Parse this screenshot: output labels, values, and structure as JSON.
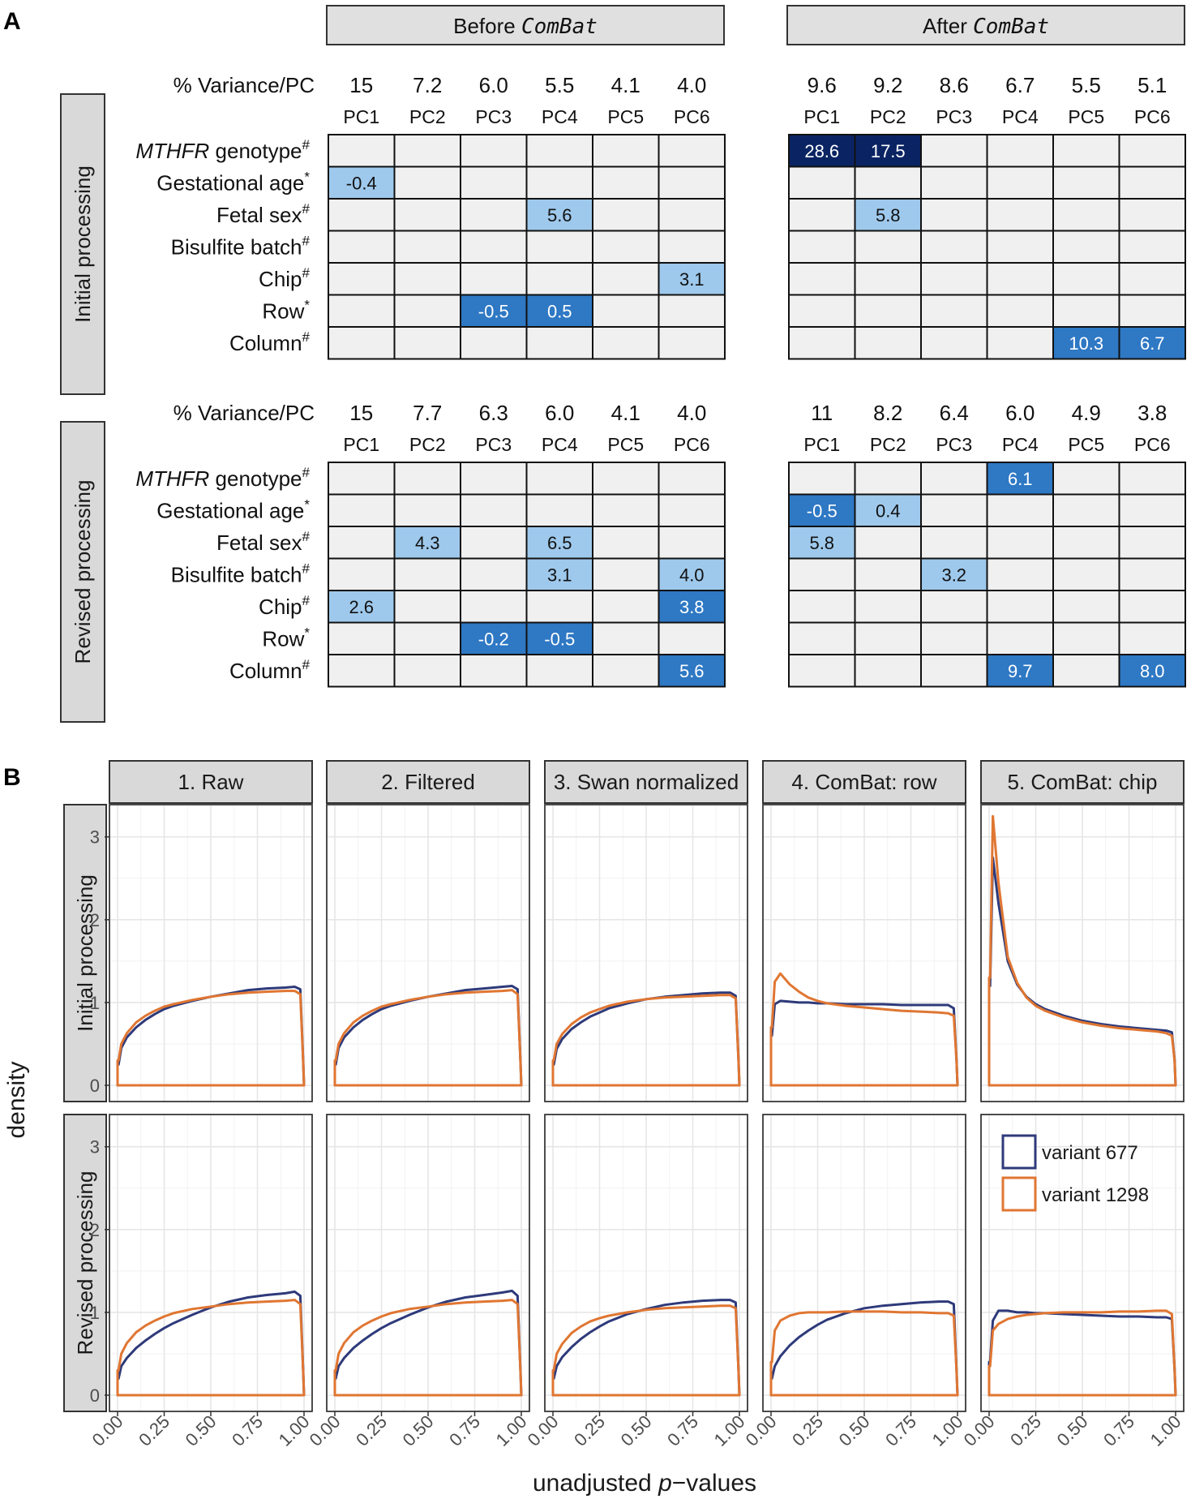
{
  "panel_a": {
    "letter": "A",
    "headers": [
      {
        "prefix": "Before ",
        "method": "ComBat"
      },
      {
        "prefix": "After ",
        "method": "ComBat"
      }
    ],
    "variance_label": "% Variance/PC",
    "pc_labels": [
      "PC1",
      "PC2",
      "PC3",
      "PC4",
      "PC5",
      "PC6"
    ],
    "row_labels": [
      {
        "name": "MTHFR",
        "rest": " genotype",
        "mark": "#",
        "italic": true
      },
      {
        "name": "",
        "rest": "Gestational age",
        "mark": "*",
        "italic": false
      },
      {
        "name": "",
        "rest": "Fetal sex",
        "mark": "#",
        "italic": false
      },
      {
        "name": "",
        "rest": "Bisulfite batch",
        "mark": "#",
        "italic": false
      },
      {
        "name": "",
        "rest": "Chip",
        "mark": "#",
        "italic": false
      },
      {
        "name": "",
        "rest": "Row",
        "mark": "*",
        "italic": false
      },
      {
        "name": "",
        "rest": "Column",
        "mark": "#",
        "italic": false
      }
    ],
    "colors": {
      "empty": "#f0f0f0",
      "light": "#9ec9ec",
      "mid": "#2e78c4",
      "dark": "#0a2463"
    },
    "blocks": [
      {
        "strip": "Initial processing",
        "tables": [
          {
            "variance": [
              "15",
              "7.2",
              "6.0",
              "5.5",
              "4.1",
              "4.0"
            ],
            "cells": [
              [
                "",
                "",
                "",
                "",
                "",
                ""
              ],
              [
                "-0.4",
                "",
                "",
                "",
                "",
                ""
              ],
              [
                "",
                "",
                "",
                "5.6",
                "",
                ""
              ],
              [
                "",
                "",
                "",
                "",
                "",
                ""
              ],
              [
                "",
                "",
                "",
                "",
                "",
                "3.1"
              ],
              [
                "",
                "",
                "-0.5",
                "0.5",
                "",
                ""
              ],
              [
                "",
                "",
                "",
                "",
                "",
                ""
              ]
            ],
            "levels": [
              [
                0,
                0,
                0,
                0,
                0,
                0
              ],
              [
                1,
                0,
                0,
                0,
                0,
                0
              ],
              [
                0,
                0,
                0,
                1,
                0,
                0
              ],
              [
                0,
                0,
                0,
                0,
                0,
                0
              ],
              [
                0,
                0,
                0,
                0,
                0,
                1
              ],
              [
                0,
                0,
                2,
                2,
                0,
                0
              ],
              [
                0,
                0,
                0,
                0,
                0,
                0
              ]
            ]
          },
          {
            "variance": [
              "9.6",
              "9.2",
              "8.6",
              "6.7",
              "5.5",
              "5.1"
            ],
            "cells": [
              [
                "28.6",
                "17.5",
                "",
                "",
                "",
                ""
              ],
              [
                "",
                "",
                "",
                "",
                "",
                ""
              ],
              [
                "",
                "5.8",
                "",
                "",
                "",
                ""
              ],
              [
                "",
                "",
                "",
                "",
                "",
                ""
              ],
              [
                "",
                "",
                "",
                "",
                "",
                ""
              ],
              [
                "",
                "",
                "",
                "",
                "",
                ""
              ],
              [
                "",
                "",
                "",
                "",
                "10.3",
                "6.7"
              ]
            ],
            "levels": [
              [
                3,
                3,
                0,
                0,
                0,
                0
              ],
              [
                0,
                0,
                0,
                0,
                0,
                0
              ],
              [
                0,
                1,
                0,
                0,
                0,
                0
              ],
              [
                0,
                0,
                0,
                0,
                0,
                0
              ],
              [
                0,
                0,
                0,
                0,
                0,
                0
              ],
              [
                0,
                0,
                0,
                0,
                0,
                0
              ],
              [
                0,
                0,
                0,
                0,
                2,
                2
              ]
            ]
          }
        ]
      },
      {
        "strip": "Revised processing",
        "tables": [
          {
            "variance": [
              "15",
              "7.7",
              "6.3",
              "6.0",
              "4.1",
              "4.0"
            ],
            "cells": [
              [
                "",
                "",
                "",
                "",
                "",
                ""
              ],
              [
                "",
                "",
                "",
                "",
                "",
                ""
              ],
              [
                "",
                "4.3",
                "",
                "6.5",
                "",
                ""
              ],
              [
                "",
                "",
                "",
                "3.1",
                "",
                "4.0"
              ],
              [
                "2.6",
                "",
                "",
                "",
                "",
                "3.8"
              ],
              [
                "",
                "",
                "-0.2",
                "-0.5",
                "",
                ""
              ],
              [
                "",
                "",
                "",
                "",
                "",
                "5.6"
              ]
            ],
            "levels": [
              [
                0,
                0,
                0,
                0,
                0,
                0
              ],
              [
                0,
                0,
                0,
                0,
                0,
                0
              ],
              [
                0,
                1,
                0,
                1,
                0,
                0
              ],
              [
                0,
                0,
                0,
                1,
                0,
                1
              ],
              [
                1,
                0,
                0,
                0,
                0,
                2
              ],
              [
                0,
                0,
                2,
                2,
                0,
                0
              ],
              [
                0,
                0,
                0,
                0,
                0,
                2
              ]
            ]
          },
          {
            "variance": [
              "11",
              "8.2",
              "6.4",
              "6.0",
              "4.9",
              "3.8"
            ],
            "cells": [
              [
                "",
                "",
                "",
                "6.1",
                "",
                ""
              ],
              [
                "-0.5",
                "0.4",
                "",
                "",
                "",
                ""
              ],
              [
                "5.8",
                "",
                "",
                "",
                "",
                ""
              ],
              [
                "",
                "",
                "3.2",
                "",
                "",
                ""
              ],
              [
                "",
                "",
                "",
                "",
                "",
                ""
              ],
              [
                "",
                "",
                "",
                "",
                "",
                ""
              ],
              [
                "",
                "",
                "",
                "9.7",
                "",
                "8.0"
              ]
            ],
            "levels": [
              [
                0,
                0,
                0,
                2,
                0,
                0
              ],
              [
                2,
                1,
                0,
                0,
                0,
                0
              ],
              [
                1,
                0,
                0,
                0,
                0,
                0
              ],
              [
                0,
                0,
                1,
                0,
                0,
                0
              ],
              [
                0,
                0,
                0,
                0,
                0,
                0
              ],
              [
                0,
                0,
                0,
                0,
                0,
                0
              ],
              [
                0,
                0,
                0,
                2,
                0,
                2
              ]
            ]
          }
        ]
      }
    ]
  },
  "chart_data": {
    "letter": "B",
    "type": "line",
    "columns": [
      "1. Raw",
      "2. Filtered",
      "3. Swan normalized",
      "4. ComBat: row",
      "5. ComBat: chip"
    ],
    "rows": [
      "Initial processing",
      "Revised processing"
    ],
    "xlabel": "unadjusted p−values",
    "xlabel_parts": [
      "unadjusted ",
      "p",
      "−values"
    ],
    "ylabel": "density",
    "xlim": [
      0,
      1
    ],
    "ylim": [
      0,
      3.35
    ],
    "x_ticks": [
      "0.00",
      "0.25",
      "0.50",
      "0.75",
      "1.00"
    ],
    "y_ticks": [
      "0",
      "1",
      "2",
      "3"
    ],
    "grid": true,
    "legend": {
      "position": "inside bottom-right panel, top-right",
      "entries": [
        {
          "name": "variant 677",
          "color": "#2e3a7a"
        },
        {
          "name": "variant 1298",
          "color": "#e07632"
        }
      ]
    },
    "x": [
      0.005,
      0.02,
      0.05,
      0.1,
      0.15,
      0.2,
      0.25,
      0.3,
      0.4,
      0.5,
      0.6,
      0.7,
      0.8,
      0.9,
      0.95,
      0.98,
      0.995
    ],
    "panels": [
      [
        {
          "variant 677": [
            0.25,
            0.45,
            0.58,
            0.7,
            0.79,
            0.86,
            0.92,
            0.96,
            1.02,
            1.07,
            1.11,
            1.15,
            1.17,
            1.18,
            1.19,
            1.16,
            0.3
          ],
          "variant 1298": [
            0.3,
            0.5,
            0.63,
            0.76,
            0.84,
            0.9,
            0.95,
            0.98,
            1.03,
            1.07,
            1.1,
            1.12,
            1.13,
            1.14,
            1.14,
            1.1,
            0.3
          ]
        },
        {
          "variant 677": [
            0.25,
            0.45,
            0.58,
            0.7,
            0.79,
            0.86,
            0.92,
            0.96,
            1.02,
            1.07,
            1.11,
            1.15,
            1.17,
            1.19,
            1.2,
            1.16,
            0.3
          ],
          "variant 1298": [
            0.3,
            0.5,
            0.63,
            0.76,
            0.84,
            0.9,
            0.95,
            0.98,
            1.03,
            1.07,
            1.1,
            1.12,
            1.13,
            1.14,
            1.15,
            1.1,
            0.3
          ]
        },
        {
          "variant 677": [
            0.25,
            0.44,
            0.56,
            0.68,
            0.76,
            0.83,
            0.88,
            0.93,
            0.99,
            1.04,
            1.07,
            1.09,
            1.11,
            1.12,
            1.12,
            1.08,
            0.3
          ],
          "variant 1298": [
            0.3,
            0.5,
            0.62,
            0.74,
            0.82,
            0.88,
            0.92,
            0.96,
            1.01,
            1.04,
            1.06,
            1.07,
            1.08,
            1.09,
            1.09,
            1.05,
            0.3
          ]
        },
        {
          "variant 677": [
            0.6,
            0.98,
            1.02,
            1.01,
            1.0,
            1.0,
            0.99,
            0.99,
            0.98,
            0.98,
            0.98,
            0.97,
            0.97,
            0.97,
            0.97,
            0.93,
            0.3
          ],
          "variant 1298": [
            0.7,
            1.25,
            1.35,
            1.22,
            1.13,
            1.06,
            1.02,
            0.99,
            0.96,
            0.94,
            0.92,
            0.9,
            0.89,
            0.88,
            0.87,
            0.84,
            0.3
          ]
        },
        {
          "variant 677": [
            1.2,
            2.75,
            2.2,
            1.5,
            1.22,
            1.07,
            0.98,
            0.92,
            0.84,
            0.78,
            0.74,
            0.71,
            0.69,
            0.67,
            0.66,
            0.64,
            0.3
          ],
          "variant 1298": [
            1.3,
            3.25,
            2.45,
            1.55,
            1.24,
            1.06,
            0.96,
            0.9,
            0.82,
            0.76,
            0.72,
            0.69,
            0.67,
            0.65,
            0.63,
            0.6,
            0.3
          ]
        }
      ],
      [
        {
          "variant 677": [
            0.2,
            0.35,
            0.45,
            0.57,
            0.66,
            0.74,
            0.81,
            0.87,
            0.97,
            1.06,
            1.13,
            1.18,
            1.21,
            1.23,
            1.25,
            1.2,
            0.3
          ],
          "variant 1298": [
            0.3,
            0.5,
            0.63,
            0.76,
            0.84,
            0.9,
            0.95,
            0.99,
            1.04,
            1.07,
            1.1,
            1.12,
            1.13,
            1.14,
            1.15,
            1.1,
            0.3
          ]
        },
        {
          "variant 677": [
            0.2,
            0.35,
            0.45,
            0.57,
            0.66,
            0.74,
            0.81,
            0.87,
            0.97,
            1.06,
            1.13,
            1.18,
            1.21,
            1.24,
            1.26,
            1.2,
            0.3
          ],
          "variant 1298": [
            0.3,
            0.5,
            0.63,
            0.76,
            0.84,
            0.9,
            0.95,
            0.99,
            1.04,
            1.07,
            1.1,
            1.12,
            1.13,
            1.14,
            1.15,
            1.1,
            0.3
          ]
        },
        {
          "variant 677": [
            0.2,
            0.35,
            0.46,
            0.58,
            0.68,
            0.76,
            0.83,
            0.89,
            0.98,
            1.04,
            1.09,
            1.12,
            1.14,
            1.15,
            1.15,
            1.12,
            0.3
          ],
          "variant 1298": [
            0.3,
            0.5,
            0.62,
            0.75,
            0.83,
            0.89,
            0.93,
            0.96,
            1.0,
            1.03,
            1.05,
            1.06,
            1.07,
            1.08,
            1.08,
            1.05,
            0.3
          ]
        },
        {
          "variant 677": [
            0.2,
            0.35,
            0.47,
            0.6,
            0.7,
            0.78,
            0.85,
            0.91,
            0.99,
            1.05,
            1.08,
            1.1,
            1.12,
            1.13,
            1.13,
            1.1,
            0.3
          ],
          "variant 1298": [
            0.4,
            0.78,
            0.9,
            0.96,
            0.99,
            1.0,
            1.0,
            1.0,
            1.01,
            1.01,
            1.01,
            1.0,
            1.0,
            0.99,
            0.99,
            0.96,
            0.3
          ]
        },
        {
          "variant 677": [
            0.4,
            0.9,
            1.02,
            1.02,
            1.0,
            1.0,
            0.99,
            0.99,
            0.98,
            0.97,
            0.96,
            0.95,
            0.95,
            0.94,
            0.94,
            0.92,
            0.3
          ],
          "variant 1298": [
            0.35,
            0.78,
            0.86,
            0.92,
            0.95,
            0.97,
            0.98,
            0.99,
            1.0,
            1.0,
            1.0,
            1.01,
            1.01,
            1.02,
            1.02,
            0.98,
            0.3
          ]
        }
      ]
    ]
  }
}
